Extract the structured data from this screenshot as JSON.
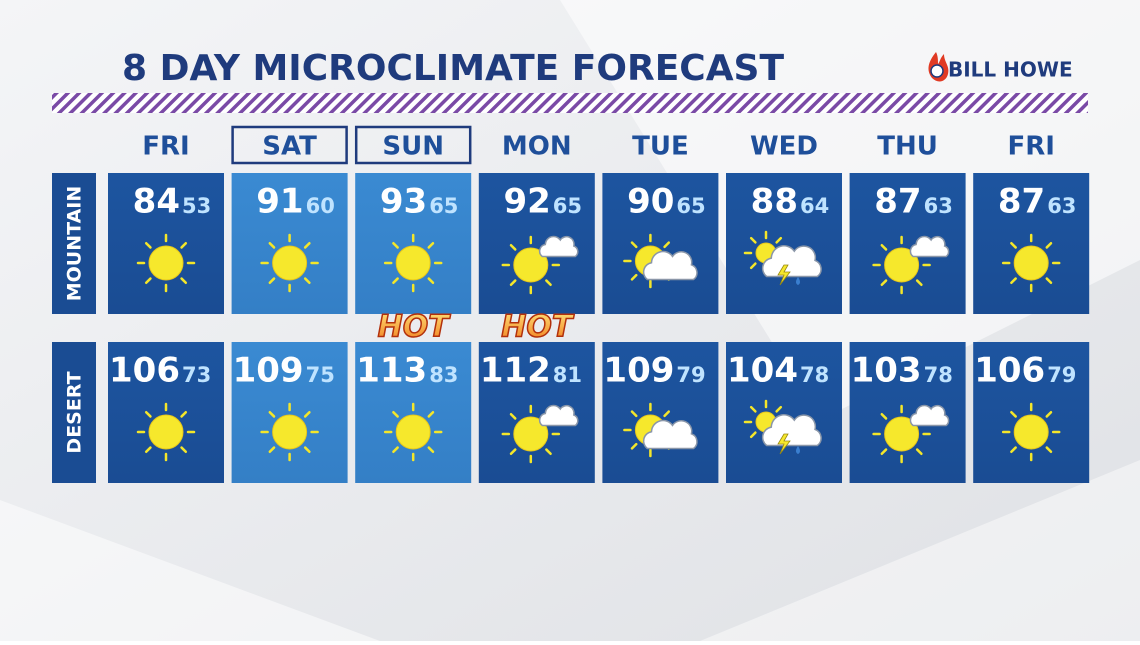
{
  "header": {
    "title": "8 DAY MICROCLIMATE FORECAST",
    "logo": "BILL HOWE"
  },
  "days": [
    "FRI",
    "SAT",
    "SUN",
    "MON",
    "TUE",
    "WED",
    "THU",
    "FRI"
  ],
  "badges": [
    "HOT",
    "HOT"
  ],
  "rows": [
    {
      "label": "MOUNTAIN",
      "highs": [
        84,
        91,
        93,
        92,
        90,
        88,
        87,
        87
      ],
      "lows": [
        53,
        60,
        65,
        65,
        65,
        64,
        63,
        63
      ]
    },
    {
      "label": "DESERT",
      "highs": [
        106,
        109,
        113,
        112,
        109,
        104,
        103,
        106
      ],
      "lows": [
        73,
        75,
        83,
        81,
        79,
        78,
        78,
        79
      ]
    }
  ]
}
